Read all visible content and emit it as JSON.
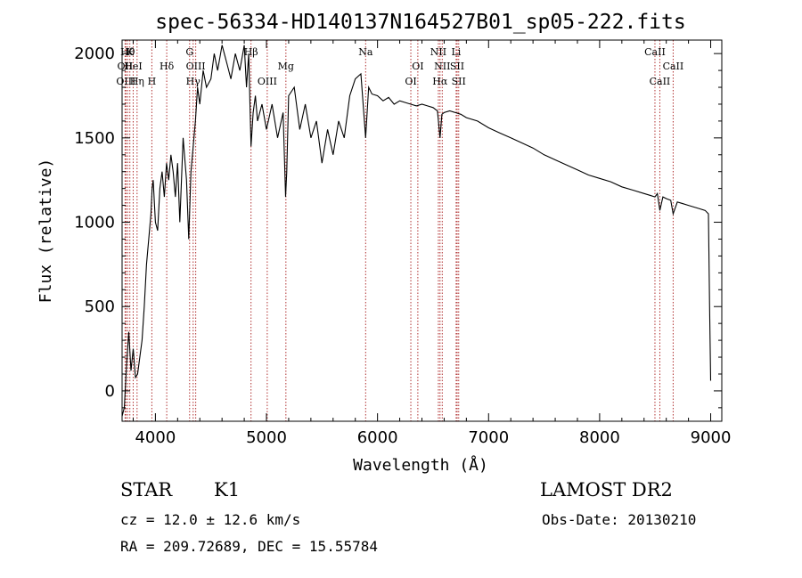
{
  "chart_data": {
    "type": "line",
    "title": "spec-56334-HD140137N164527B01_sp05-222.fits",
    "xlabel": "Wavelength (Å)",
    "ylabel": "Flux (relative)",
    "xlim": [
      3700,
      9100
    ],
    "ylim": [
      -180,
      2080
    ],
    "x_ticks": [
      4000,
      5000,
      6000,
      7000,
      8000,
      9000
    ],
    "y_ticks": [
      0,
      500,
      1000,
      1500,
      2000
    ],
    "grid": false,
    "series": [
      {
        "x": [
          3700,
          3720,
          3740,
          3760,
          3780,
          3800,
          3820,
          3840,
          3860,
          3880,
          3900,
          3920,
          3940,
          3960,
          3970,
          3980,
          4000,
          4020,
          4040,
          4060,
          4080,
          4100,
          4120,
          4140,
          4160,
          4180,
          4200,
          4220,
          4250,
          4280,
          4300,
          4320,
          4340,
          4360,
          4380,
          4400,
          4430,
          4460,
          4500,
          4530,
          4560,
          4600,
          4640,
          4680,
          4720,
          4760,
          4800,
          4820,
          4840,
          4861,
          4880,
          4900,
          4920,
          4960,
          5000,
          5050,
          5100,
          5150,
          5172,
          5183,
          5200,
          5250,
          5300,
          5350,
          5400,
          5450,
          5500,
          5550,
          5600,
          5650,
          5700,
          5750,
          5800,
          5850,
          5893,
          5920,
          5950,
          6000,
          6050,
          6100,
          6150,
          6200,
          6250,
          6300,
          6350,
          6400,
          6450,
          6500,
          6540,
          6563,
          6580,
          6600,
          6650,
          6700,
          6750,
          6800,
          6900,
          7000,
          7100,
          7200,
          7300,
          7400,
          7500,
          7600,
          7700,
          7800,
          7900,
          8000,
          8100,
          8200,
          8300,
          8400,
          8450,
          8498,
          8520,
          8542,
          8570,
          8600,
          8640,
          8662,
          8700,
          8750,
          8800,
          8850,
          8900,
          8950,
          8980,
          8990,
          9000
        ],
        "values": [
          -150,
          -100,
          150,
          350,
          120,
          250,
          80,
          100,
          200,
          300,
          500,
          750,
          900,
          1050,
          1200,
          1250,
          1000,
          950,
          1200,
          1300,
          1150,
          1350,
          1250,
          1400,
          1300,
          1150,
          1350,
          1000,
          1500,
          1250,
          900,
          1300,
          1450,
          1600,
          1800,
          1700,
          1900,
          1800,
          1850,
          2000,
          1900,
          2050,
          1950,
          1850,
          2000,
          1900,
          2050,
          1800,
          2000,
          1450,
          1650,
          1750,
          1600,
          1700,
          1550,
          1700,
          1500,
          1650,
          1150,
          1300,
          1750,
          1800,
          1550,
          1700,
          1500,
          1600,
          1350,
          1550,
          1400,
          1600,
          1500,
          1750,
          1850,
          1880,
          1500,
          1800,
          1760,
          1750,
          1720,
          1740,
          1700,
          1720,
          1710,
          1700,
          1690,
          1700,
          1690,
          1680,
          1660,
          1500,
          1640,
          1650,
          1660,
          1650,
          1640,
          1620,
          1600,
          1560,
          1530,
          1500,
          1470,
          1440,
          1400,
          1370,
          1340,
          1310,
          1280,
          1260,
          1240,
          1210,
          1190,
          1170,
          1160,
          1150,
          1170,
          1070,
          1150,
          1140,
          1130,
          1050,
          1120,
          1110,
          1100,
          1090,
          1080,
          1070,
          1050,
          500,
          60
        ]
      }
    ],
    "lines": [
      {
        "x": 3750,
        "label": "Hθ",
        "row": 0
      },
      {
        "x": 3770,
        "label": "K",
        "row": 0
      },
      {
        "x": 3727,
        "label": "OII",
        "row": 1
      },
      {
        "x": 3800,
        "label": "HeI",
        "row": 1
      },
      {
        "x": 3735,
        "label": "OIII",
        "row": 2
      },
      {
        "x": 3835,
        "label": "Hη",
        "row": 2
      },
      {
        "x": 3968,
        "label": "H",
        "row": 2
      },
      {
        "x": 4102,
        "label": "Hδ",
        "row": 1
      },
      {
        "x": 4308,
        "label": "G",
        "row": 0
      },
      {
        "x": 4363,
        "label": "OIII",
        "row": 1
      },
      {
        "x": 4340,
        "label": "Hγ",
        "row": 2
      },
      {
        "x": 4861,
        "label": "Hβ",
        "row": 0
      },
      {
        "x": 5007,
        "label": "OIII",
        "row": 2
      },
      {
        "x": 5175,
        "label": "Mg",
        "row": 1
      },
      {
        "x": 5893,
        "label": "Na",
        "row": 0
      },
      {
        "x": 6300,
        "label": "OI",
        "row": 2
      },
      {
        "x": 6363,
        "label": "OI",
        "row": 1
      },
      {
        "x": 6548,
        "label": "NII",
        "row": 0
      },
      {
        "x": 6583,
        "label": "NII",
        "row": 1
      },
      {
        "x": 6563,
        "label": "Hα",
        "row": 2
      },
      {
        "x": 6708,
        "label": "Li",
        "row": 0
      },
      {
        "x": 6717,
        "label": "SII",
        "row": 1
      },
      {
        "x": 6731,
        "label": "SII",
        "row": 2
      },
      {
        "x": 8498,
        "label": "CaII",
        "row": 0
      },
      {
        "x": 8662,
        "label": "CaII",
        "row": 1
      },
      {
        "x": 8542,
        "label": "CaII",
        "row": 2
      }
    ]
  },
  "info": {
    "object_type": "STAR",
    "subclass": "K1",
    "cz": "cz = 12.0 ± 12.6 km/s",
    "coords": "RA = 209.72689, DEC =  15.55784",
    "survey": "LAMOST DR2",
    "obs_date": "Obs-Date: 20130210"
  },
  "colors": {
    "line_markers": "#b03030",
    "spectrum": "#000000"
  }
}
